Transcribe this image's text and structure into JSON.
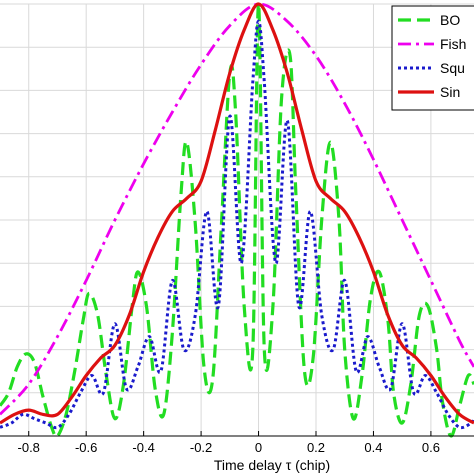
{
  "chart_data": {
    "type": "line",
    "xlabel": "Time delay τ (chip)",
    "xlim": [
      -0.9,
      0.75
    ],
    "ylim": [
      0,
      1
    ],
    "x_ticks": [
      -0.8,
      -0.6,
      -0.4,
      -0.2,
      0,
      0.2,
      0.4,
      0.6
    ],
    "x_tick_labels": [
      "-0.8",
      "-0.6",
      "-0.4",
      "-0.2",
      "0",
      "0.2",
      "0.4",
      "0.6"
    ],
    "grid": true,
    "legend_position": "top-right",
    "series": [
      {
        "name": "BO",
        "color": "#22dd22",
        "style": "dashed",
        "x": [
          -0.9,
          -0.87,
          -0.84,
          -0.81,
          -0.78,
          -0.75,
          -0.72,
          -0.7,
          -0.67,
          -0.64,
          -0.61,
          -0.59,
          -0.56,
          -0.53,
          -0.5,
          -0.47,
          -0.44,
          -0.42,
          -0.39,
          -0.36,
          -0.33,
          -0.3,
          -0.27,
          -0.25,
          -0.22,
          -0.19,
          -0.16,
          -0.13,
          -0.1,
          -0.08,
          -0.05,
          -0.02,
          0,
          0.02,
          0.05,
          0.08,
          0.11,
          0.13,
          0.16,
          0.19,
          0.22,
          0.25,
          0.28,
          0.3,
          0.33,
          0.36,
          0.39,
          0.42,
          0.45,
          0.47,
          0.5,
          0.53,
          0.56,
          0.59,
          0.62,
          0.64,
          0.67,
          0.7,
          0.73,
          0.75
        ],
        "y": [
          0.07,
          0.1,
          0.16,
          0.19,
          0.17,
          0.09,
          0.02,
          0.0,
          0.05,
          0.15,
          0.27,
          0.33,
          0.28,
          0.14,
          0.04,
          0.12,
          0.3,
          0.38,
          0.3,
          0.11,
          0.05,
          0.24,
          0.56,
          0.68,
          0.49,
          0.16,
          0.13,
          0.48,
          0.84,
          0.75,
          0.3,
          0.2,
          1.0,
          0.2,
          0.3,
          0.78,
          0.88,
          0.56,
          0.15,
          0.18,
          0.5,
          0.68,
          0.5,
          0.2,
          0.04,
          0.14,
          0.32,
          0.38,
          0.27,
          0.1,
          0.03,
          0.12,
          0.28,
          0.3,
          0.2,
          0.08,
          0.0,
          0.07,
          0.14,
          0.12
        ]
      },
      {
        "name": "Fish",
        "color": "#ee00ee",
        "style": "dashdot",
        "x": [
          -0.9,
          -0.8,
          -0.7,
          -0.6,
          -0.5,
          -0.4,
          -0.3,
          -0.2,
          -0.1,
          0,
          0.1,
          0.2,
          0.3,
          0.4,
          0.5,
          0.6,
          0.7,
          0.75
        ],
        "y": [
          0.05,
          0.12,
          0.23,
          0.36,
          0.5,
          0.63,
          0.75,
          0.86,
          0.95,
          1.0,
          0.96,
          0.88,
          0.77,
          0.64,
          0.5,
          0.36,
          0.22,
          0.16
        ]
      },
      {
        "name": "Squ",
        "color": "#1a1acc",
        "style": "dotted",
        "x": [
          -0.9,
          -0.86,
          -0.82,
          -0.78,
          -0.74,
          -0.7,
          -0.66,
          -0.62,
          -0.58,
          -0.54,
          -0.5,
          -0.46,
          -0.42,
          -0.38,
          -0.34,
          -0.3,
          -0.26,
          -0.22,
          -0.18,
          -0.14,
          -0.1,
          -0.06,
          -0.02,
          0,
          0.02,
          0.06,
          0.1,
          0.14,
          0.18,
          0.22,
          0.26,
          0.3,
          0.34,
          0.38,
          0.42,
          0.46,
          0.5,
          0.54,
          0.58,
          0.62,
          0.66,
          0.7,
          0.74,
          0.75
        ],
        "y": [
          0.02,
          0.03,
          0.05,
          0.04,
          0.03,
          0.02,
          0.05,
          0.1,
          0.14,
          0.1,
          0.26,
          0.11,
          0.16,
          0.23,
          0.15,
          0.36,
          0.2,
          0.28,
          0.52,
          0.3,
          0.74,
          0.4,
          0.82,
          0.96,
          0.82,
          0.4,
          0.73,
          0.3,
          0.52,
          0.28,
          0.2,
          0.36,
          0.15,
          0.23,
          0.16,
          0.11,
          0.26,
          0.1,
          0.14,
          0.1,
          0.05,
          0.02,
          0.03,
          0.04
        ]
      },
      {
        "name": "Sin",
        "color": "#dd1111",
        "style": "solid",
        "x": [
          -0.9,
          -0.85,
          -0.8,
          -0.75,
          -0.7,
          -0.65,
          -0.6,
          -0.55,
          -0.5,
          -0.45,
          -0.4,
          -0.35,
          -0.3,
          -0.25,
          -0.2,
          -0.15,
          -0.1,
          -0.05,
          0,
          0.05,
          0.1,
          0.15,
          0.2,
          0.25,
          0.3,
          0.35,
          0.4,
          0.45,
          0.5,
          0.55,
          0.6,
          0.65,
          0.7,
          0.75
        ],
        "y": [
          0.03,
          0.05,
          0.06,
          0.05,
          0.05,
          0.09,
          0.14,
          0.18,
          0.21,
          0.28,
          0.38,
          0.46,
          0.52,
          0.55,
          0.59,
          0.71,
          0.84,
          0.94,
          1.0,
          0.94,
          0.84,
          0.71,
          0.59,
          0.55,
          0.52,
          0.46,
          0.38,
          0.28,
          0.21,
          0.18,
          0.14,
          0.09,
          0.05,
          0.03
        ]
      }
    ]
  }
}
